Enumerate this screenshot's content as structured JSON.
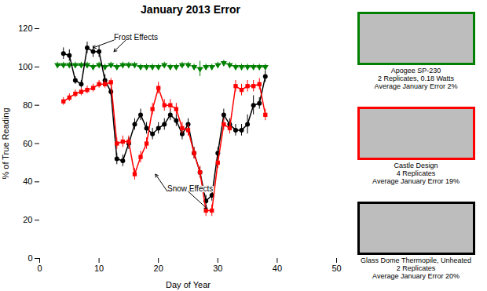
{
  "chart_data": {
    "type": "line",
    "title": "January 2013 Error",
    "xlabel": "Day of Year",
    "ylabel": "% of True Reading",
    "xlim": [
      0,
      50
    ],
    "ylim": [
      0,
      120
    ],
    "xticks": [
      0,
      10,
      20,
      30,
      40,
      50
    ],
    "yticks": [
      0,
      20,
      40,
      60,
      80,
      100,
      120
    ],
    "grid": false,
    "series": [
      {
        "color": "green",
        "marker": "triangle-down",
        "line_style": "dashed",
        "x": [
          3,
          4,
          5,
          6,
          7,
          8,
          9,
          10,
          11,
          12,
          13,
          14,
          15,
          16,
          17,
          18,
          19,
          20,
          21,
          22,
          23,
          24,
          25,
          26,
          27,
          28,
          29,
          30,
          31,
          32,
          33,
          34,
          35,
          36,
          37,
          38
        ],
        "values": [
          101,
          101,
          101,
          101,
          101,
          101,
          100,
          101,
          100,
          101,
          100,
          101,
          101,
          101,
          100,
          100,
          100,
          100,
          101,
          100,
          100,
          101,
          101,
          100,
          99,
          100,
          100,
          101,
          102,
          101,
          100,
          100,
          100,
          100,
          100,
          100
        ],
        "errors": [
          1.5,
          1.5,
          1.5,
          1.5,
          1.5,
          1.5,
          1.5,
          1.5,
          1.5,
          1.5,
          1.5,
          1.5,
          1.5,
          1.5,
          1.5,
          1.5,
          1.5,
          1.5,
          1.5,
          1.5,
          1.5,
          1.5,
          1.5,
          1.5,
          4,
          1.5,
          1.5,
          1.5,
          1.5,
          1.5,
          1.5,
          1.5,
          1.5,
          1.5,
          1.5,
          1.5
        ]
      },
      {
        "color": "black",
        "marker": "circle",
        "line_style": "solid",
        "x": [
          4,
          5,
          6,
          7,
          8,
          9,
          10,
          11,
          12,
          13,
          14,
          15,
          16,
          17,
          18,
          19,
          20,
          21,
          22,
          23,
          24,
          25,
          26,
          27,
          28,
          29,
          30,
          31,
          32,
          33,
          34,
          35,
          36,
          37,
          38
        ],
        "values": [
          107,
          106,
          93,
          91,
          110,
          108,
          108,
          93,
          87,
          52,
          51,
          60,
          70,
          75,
          68,
          65,
          68,
          70,
          75,
          72,
          65,
          70,
          55,
          45,
          30,
          33,
          55,
          75,
          70,
          67,
          67,
          70,
          80,
          81,
          95
        ],
        "errors": [
          3,
          3,
          2,
          2,
          3,
          3,
          3,
          3,
          2,
          3,
          3,
          3,
          3,
          3,
          3,
          3,
          3,
          3,
          3,
          3,
          3,
          3,
          3,
          3,
          3,
          3,
          3,
          3,
          3,
          3,
          3,
          5,
          5,
          3,
          3
        ]
      },
      {
        "color": "red",
        "marker": "square",
        "line_style": "solid",
        "x": [
          4,
          5,
          6,
          7,
          8,
          9,
          10,
          11,
          12,
          13,
          14,
          15,
          16,
          17,
          18,
          19,
          20,
          21,
          22,
          23,
          24,
          25,
          26,
          27,
          28,
          29,
          30,
          31,
          32,
          33,
          34,
          35,
          36,
          37,
          38
        ],
        "values": [
          82,
          84,
          86,
          87,
          88,
          89,
          91,
          91,
          92,
          60,
          61,
          61,
          44,
          53,
          60,
          78,
          89,
          80,
          80,
          78,
          68,
          67,
          55,
          45,
          25,
          25,
          50,
          70,
          68,
          90,
          88,
          90,
          90,
          91,
          75
        ],
        "errors": [
          2,
          2,
          2,
          2,
          2,
          2,
          2,
          2,
          2,
          3,
          3,
          3,
          3,
          3,
          3,
          3,
          3,
          3,
          3,
          3,
          3,
          3,
          3,
          3,
          3,
          3,
          3,
          3,
          3,
          3,
          3,
          3,
          3,
          3,
          3
        ]
      }
    ],
    "annotations": [
      {
        "text": "Frost Effects",
        "x": 12.5,
        "y": 114,
        "arrows": [
          {
            "from": [
              12.5,
              114
            ],
            "to": [
              9.0,
              110
            ]
          },
          {
            "from": [
              14.5,
              114
            ],
            "to": [
              12.5,
              108
            ]
          }
        ]
      },
      {
        "text": "Snow Effects",
        "x": 21.5,
        "y": 35,
        "arrows": [
          {
            "from": [
              21.5,
              35
            ],
            "to": [
              19.5,
              44
            ]
          },
          {
            "from": [
              25.0,
              35
            ],
            "to": [
              28.2,
              26
            ]
          }
        ]
      },
      {
        "text": "Apogee SP-230\n2 Replicates, 0.18 Watts\nAverage January Error 2%",
        "color": "green"
      },
      {
        "text": "Castle Design\n4 Replicates\nAverage January Error 19%",
        "color": "red"
      },
      {
        "text": "Glass Dome Thermopile, Unheated\n2 Replicates\nAverage January Error 20%",
        "color": "black"
      }
    ]
  }
}
